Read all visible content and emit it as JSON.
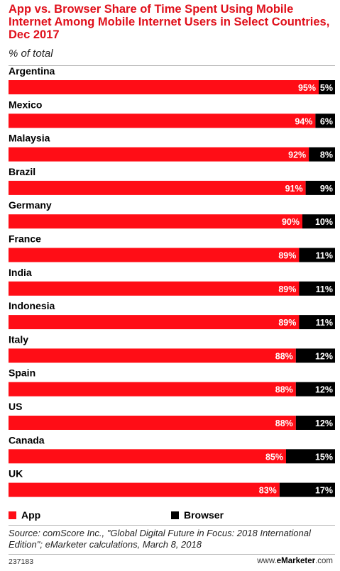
{
  "chart_data": {
    "type": "bar",
    "stacked": true,
    "orientation": "horizontal",
    "title": "App vs. Browser Share of Time Spent Using Mobile Internet Among Mobile Internet Users in Select Countries, Dec 2017",
    "subtitle": "% of total",
    "categories": [
      "Argentina",
      "Mexico",
      "Malaysia",
      "Brazil",
      "Germany",
      "France",
      "India",
      "Indonesia",
      "Italy",
      "Spain",
      "US",
      "Canada",
      "UK"
    ],
    "series": [
      {
        "name": "App",
        "color": "#ff0d16",
        "values": [
          95,
          94,
          92,
          91,
          90,
          89,
          89,
          89,
          88,
          88,
          88,
          85,
          83
        ]
      },
      {
        "name": "Browser",
        "color": "#000000",
        "values": [
          5,
          6,
          8,
          9,
          10,
          11,
          11,
          11,
          12,
          12,
          12,
          15,
          17
        ]
      }
    ],
    "value_suffix": "%",
    "xlim": [
      0,
      100
    ],
    "legend_position": "bottom-left",
    "grid": false
  },
  "source": "Source: comScore Inc., \"Global Digital Future in Focus: 2018 International Edition\"; eMarketer calculations, March 8, 2018",
  "footer": {
    "chart_id": "237183",
    "brand_prefix": "www.",
    "brand_name": "eMarketer",
    "brand_suffix": ".com"
  }
}
